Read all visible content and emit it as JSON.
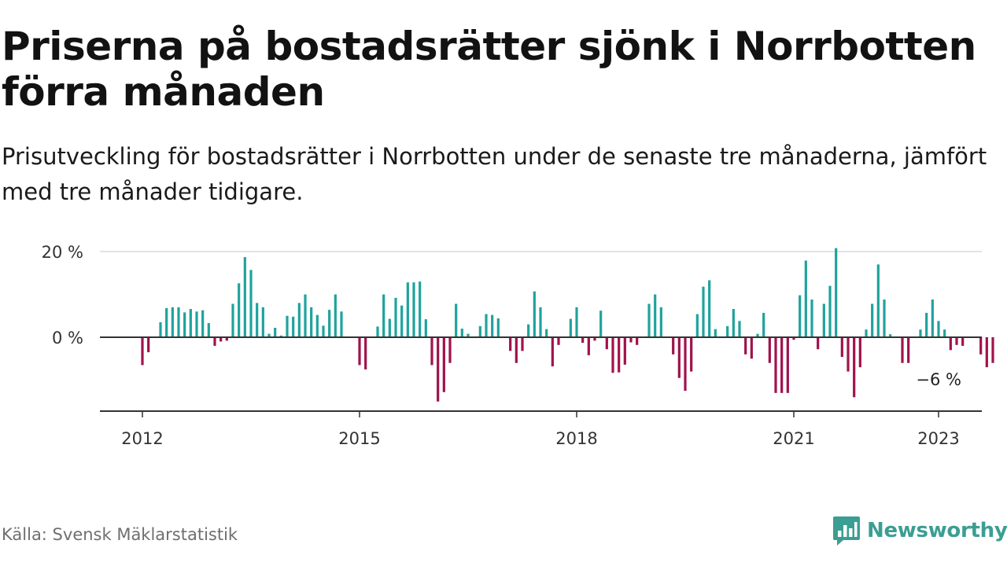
{
  "title": "Priserna på bostadsrätter sjönk i Norrbotten förra månaden",
  "subtitle": "Prisutveckling för bostadsrätter i Norrbotten under de senaste tre månaderna, jämfört med tre månader tidigare.",
  "source": "Källa: Svensk Mäklarstatistik",
  "brand": "Newsworthy",
  "colors": {
    "positive": "#1fa39c",
    "negative": "#a0124d",
    "brand": "#3b9e93"
  },
  "chart_data": {
    "type": "bar",
    "title": "Prisutveckling för bostadsrätter i Norrbotten",
    "ylim": [
      -17,
      21
    ],
    "y_ticks": [
      {
        "value": 0,
        "label": "0 %"
      },
      {
        "value": 20,
        "label": "20 %"
      }
    ],
    "x_ticks": [
      {
        "year": 2012,
        "label": "2012"
      },
      {
        "year": 2015,
        "label": "2015"
      },
      {
        "year": 2018,
        "label": "2018"
      },
      {
        "year": 2021,
        "label": "2021"
      },
      {
        "year": 2023,
        "label": "2023"
      }
    ],
    "start": "2012-01",
    "unit": "%",
    "last_label": "−6 %",
    "values": [
      -6.5,
      -3.5,
      0,
      3.5,
      6.8,
      7.0,
      7.0,
      5.8,
      6.6,
      6.0,
      6.3,
      3.3,
      -2.0,
      -1.0,
      -0.8,
      7.8,
      12.6,
      18.7,
      15.7,
      8.0,
      7.0,
      0.8,
      2.2,
      0.4,
      5.0,
      4.8,
      8.0,
      10.0,
      7.0,
      5.2,
      2.7,
      6.4,
      10.0,
      6.0,
      0,
      0,
      -6.5,
      -7.5,
      0,
      2.5,
      10.0,
      4.3,
      9.2,
      7.4,
      12.8,
      12.8,
      13.0,
      4.2,
      -6.5,
      -15.0,
      -12.8,
      -6.0,
      7.8,
      2.0,
      0.8,
      0,
      2.6,
      5.4,
      5.2,
      4.4,
      0,
      -3.2,
      -6.0,
      -3.2,
      3.0,
      10.7,
      7.0,
      1.9,
      -6.8,
      -1.8,
      0,
      4.3,
      7.0,
      -1.3,
      -4.2,
      -0.8,
      6.2,
      -2.8,
      -8.3,
      -8.2,
      -6.4,
      -1.2,
      -1.8,
      0,
      7.8,
      10.0,
      7.0,
      0,
      -4.0,
      -9.5,
      -12.5,
      -8.0,
      5.4,
      11.8,
      13.3,
      1.9,
      0,
      2.6,
      6.6,
      3.8,
      -4.0,
      -5.0,
      0.8,
      5.7,
      -6.0,
      -13.0,
      -13.0,
      -13.0,
      -0.6,
      9.8,
      17.9,
      8.8,
      -2.8,
      7.8,
      12.0,
      20.8,
      -4.6,
      -8.0,
      -14.0,
      -7.0,
      1.8,
      7.8,
      17.0,
      8.8,
      0.7,
      0,
      -6.0,
      -6.0,
      0,
      1.8,
      5.7,
      8.8,
      3.8,
      1.8,
      -3.0,
      -1.8,
      -2.0,
      0,
      0,
      -4.0,
      -7.0,
      -6.0
    ]
  }
}
